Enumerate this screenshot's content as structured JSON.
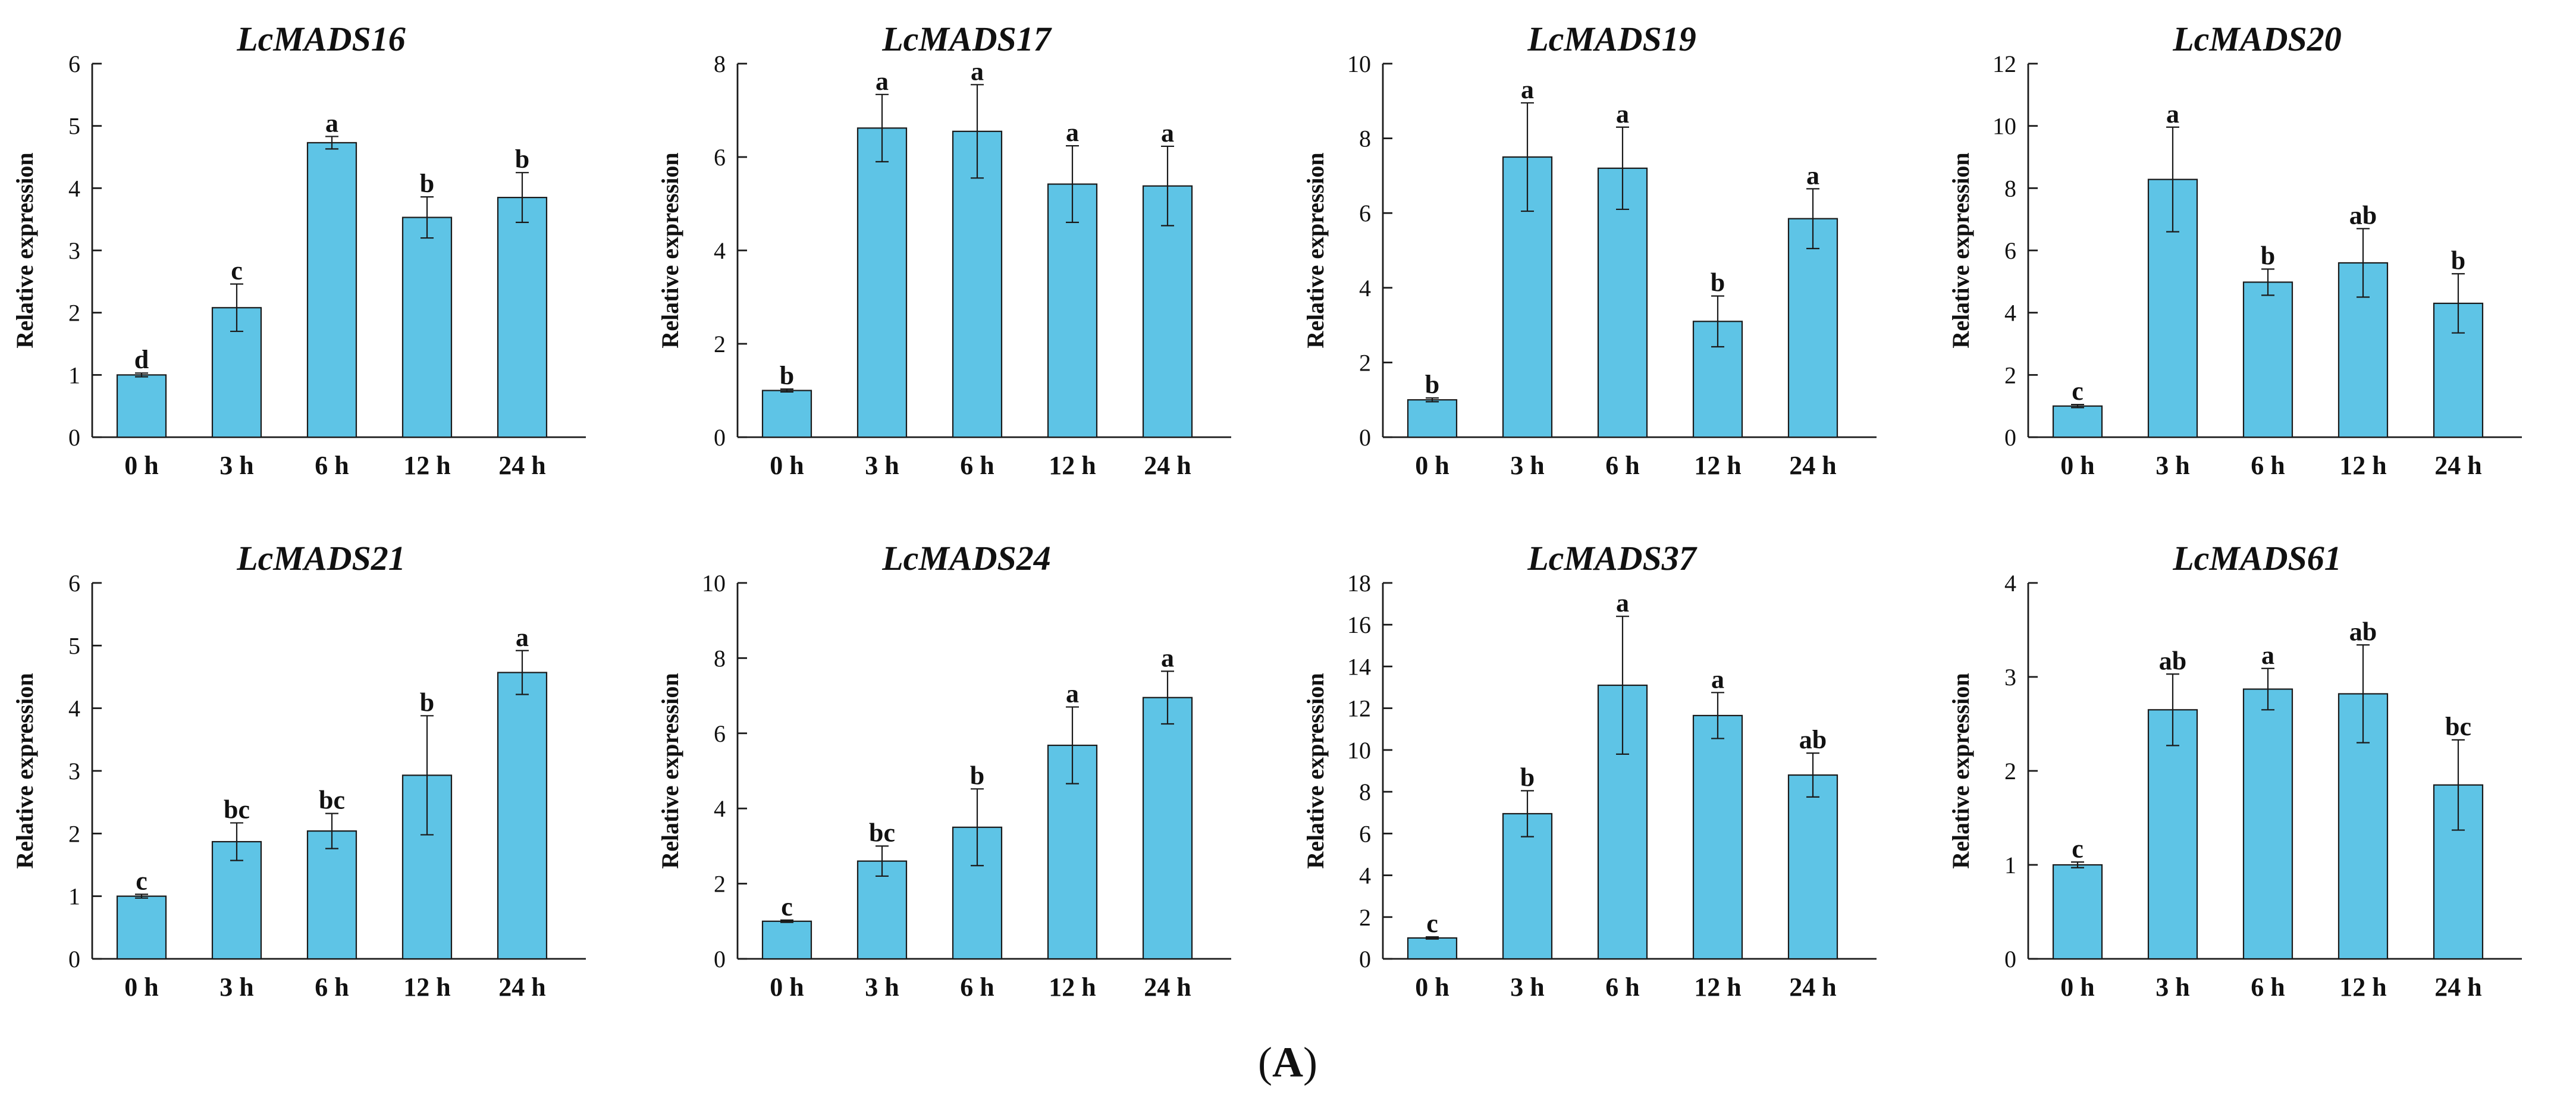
{
  "figure_label": "(A)",
  "chart_data": [
    {
      "type": "bar",
      "title": "LcMADS16",
      "ylabel": "Relative expression",
      "xlabel": "",
      "categories": [
        "0 h",
        "3 h",
        "6 h",
        "12 h",
        "24 h"
      ],
      "values": [
        1.0,
        2.08,
        4.73,
        3.53,
        3.85
      ],
      "errors": [
        0.03,
        0.38,
        0.1,
        0.33,
        0.4
      ],
      "significance": [
        "d",
        "c",
        "a",
        "b",
        "b"
      ],
      "ylim": [
        0,
        6
      ],
      "yticks": [
        0,
        1,
        2,
        3,
        4,
        5,
        6
      ]
    },
    {
      "type": "bar",
      "title": "LcMADS17",
      "ylabel": "Relative expression",
      "xlabel": "",
      "categories": [
        "0 h",
        "3 h",
        "6 h",
        "12 h",
        "24 h"
      ],
      "values": [
        1.0,
        6.62,
        6.55,
        5.42,
        5.38
      ],
      "errors": [
        0.03,
        0.72,
        1.0,
        0.82,
        0.85
      ],
      "significance": [
        "b",
        "a",
        "a",
        "a",
        "a"
      ],
      "ylim": [
        0,
        8
      ],
      "yticks": [
        0,
        2,
        4,
        6,
        8
      ]
    },
    {
      "type": "bar",
      "title": "LcMADS19",
      "ylabel": "Relative expression",
      "xlabel": "",
      "categories": [
        "0 h",
        "3 h",
        "6 h",
        "12 h",
        "24 h"
      ],
      "values": [
        1.0,
        7.5,
        7.2,
        3.1,
        5.85
      ],
      "errors": [
        0.05,
        1.45,
        1.1,
        0.68,
        0.8
      ],
      "significance": [
        "b",
        "a",
        "a",
        "b",
        "a"
      ],
      "ylim": [
        0,
        10
      ],
      "yticks": [
        0,
        2,
        4,
        6,
        8,
        10
      ]
    },
    {
      "type": "bar",
      "title": "LcMADS20",
      "ylabel": "Relative expression",
      "xlabel": "",
      "categories": [
        "0 h",
        "3 h",
        "6 h",
        "12 h",
        "24 h"
      ],
      "values": [
        1.0,
        8.28,
        4.98,
        5.6,
        4.3
      ],
      "errors": [
        0.05,
        1.68,
        0.42,
        1.1,
        0.95
      ],
      "significance": [
        "c",
        "a",
        "b",
        "ab",
        "b"
      ],
      "ylim": [
        0,
        12
      ],
      "yticks": [
        0,
        2,
        4,
        6,
        8,
        10,
        12
      ]
    },
    {
      "type": "bar",
      "title": "LcMADS21",
      "ylabel": "Relative expression",
      "xlabel": "",
      "categories": [
        "0 h",
        "3 h",
        "6 h",
        "12 h",
        "24 h"
      ],
      "values": [
        1.0,
        1.87,
        2.04,
        2.93,
        4.57
      ],
      "errors": [
        0.03,
        0.3,
        0.28,
        0.95,
        0.35
      ],
      "significance": [
        "c",
        "bc",
        "bc",
        "b",
        "a"
      ],
      "ylim": [
        0,
        6
      ],
      "yticks": [
        0,
        1,
        2,
        3,
        4,
        5,
        6
      ]
    },
    {
      "type": "bar",
      "title": "LcMADS24",
      "ylabel": "Relative expression",
      "xlabel": "",
      "categories": [
        "0 h",
        "3 h",
        "6 h",
        "12 h",
        "24 h"
      ],
      "values": [
        1.0,
        2.6,
        3.5,
        5.68,
        6.95
      ],
      "errors": [
        0.03,
        0.4,
        1.02,
        1.02,
        0.7
      ],
      "significance": [
        "c",
        "bc",
        "b",
        "a",
        "a"
      ],
      "ylim": [
        0,
        10
      ],
      "yticks": [
        0,
        2,
        4,
        6,
        8,
        10
      ]
    },
    {
      "type": "bar",
      "title": "LcMADS37",
      "ylabel": "Relative expression",
      "xlabel": "",
      "categories": [
        "0 h",
        "3 h",
        "6 h",
        "12 h",
        "24 h"
      ],
      "values": [
        1.0,
        6.95,
        13.1,
        11.65,
        8.8
      ],
      "errors": [
        0.05,
        1.1,
        3.3,
        1.1,
        1.05
      ],
      "significance": [
        "c",
        "b",
        "a",
        "a",
        "ab"
      ],
      "ylim": [
        0,
        18
      ],
      "yticks": [
        0,
        2,
        4,
        6,
        8,
        10,
        12,
        14,
        16,
        18
      ]
    },
    {
      "type": "bar",
      "title": "LcMADS61",
      "ylabel": "Relative expression",
      "xlabel": "",
      "categories": [
        "0 h",
        "3 h",
        "6 h",
        "12 h",
        "24 h"
      ],
      "values": [
        1.0,
        2.65,
        2.87,
        2.82,
        1.85
      ],
      "errors": [
        0.03,
        0.38,
        0.22,
        0.52,
        0.48
      ],
      "significance": [
        "c",
        "ab",
        "a",
        "ab",
        "bc"
      ],
      "ylim": [
        0,
        4
      ],
      "yticks": [
        0,
        1,
        2,
        3,
        4
      ]
    }
  ]
}
